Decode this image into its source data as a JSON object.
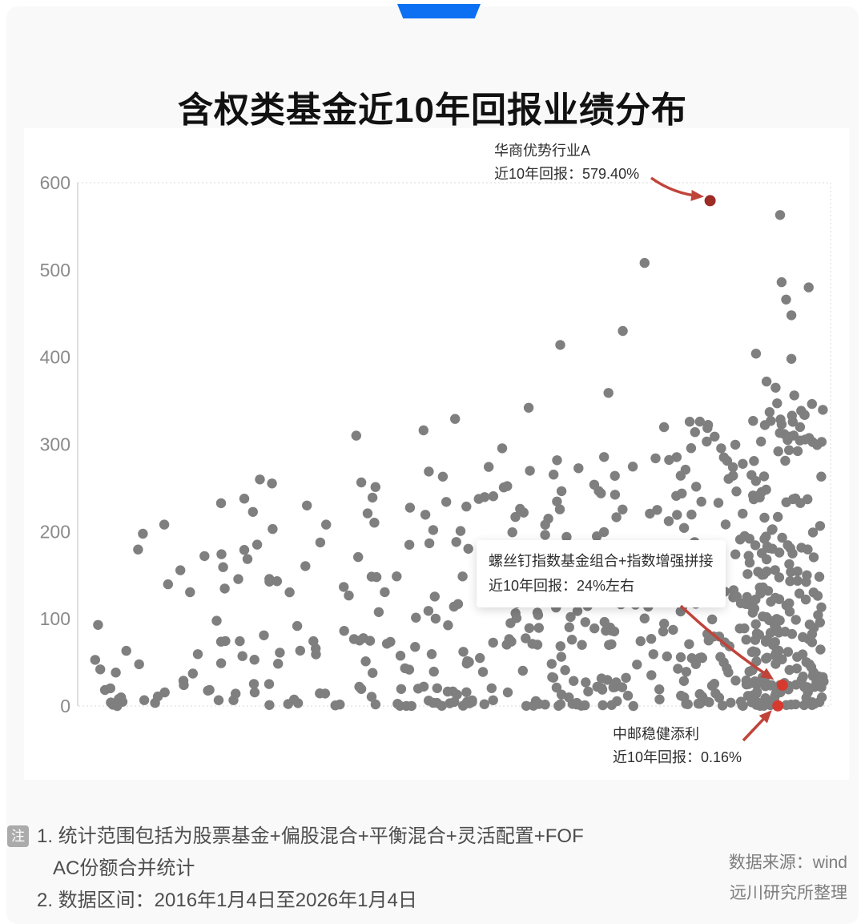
{
  "header": {
    "title": "含权类基金近10年回报业绩分布"
  },
  "ribbon_color": "#0d70f2",
  "chart_data": {
    "type": "scatter",
    "title": "含权类基金近10年回报业绩分布",
    "x_axis": {
      "label": "",
      "range": [
        0,
        100
      ],
      "ticks_visible": false
    },
    "y_axis": {
      "label": "",
      "unit": "%",
      "range": [
        0,
        600
      ],
      "ticks": [
        0,
        100,
        200,
        300,
        400,
        500,
        600
      ]
    },
    "grid": "off",
    "legend": "none",
    "point_color": "#7f7f7f",
    "point_radius": 6.2,
    "arrow_color": "#c0443a",
    "seed": 20,
    "clusters": [
      {
        "n": 26,
        "x": [
          2,
          18
        ],
        "y": [
          0,
          215
        ],
        "pow": 2.1
      },
      {
        "n": 72,
        "x": [
          18,
          42
        ],
        "y": [
          0,
          265
        ],
        "pow": 2.0
      },
      {
        "n": 92,
        "x": [
          42,
          62
        ],
        "y": [
          0,
          278
        ],
        "pow": 1.9
      },
      {
        "n": 104,
        "x": [
          62,
          80
        ],
        "y": [
          0,
          288
        ],
        "pow": 1.8
      },
      {
        "n": 150,
        "x": [
          80,
          94
        ],
        "y": [
          0,
          335
        ],
        "pow": 1.65
      },
      {
        "n": 165,
        "x": [
          89.5,
          99.2
        ],
        "y": [
          0,
          358
        ],
        "pow": 1.5
      },
      {
        "n": 14,
        "x": [
          30,
          80
        ],
        "y": [
          228,
          332
        ],
        "pow": 1.0
      }
    ],
    "extra_points": [
      [
        37.0,
        310
      ],
      [
        48.5,
        263
      ],
      [
        64.1,
        414
      ],
      [
        72.4,
        430
      ],
      [
        75.3,
        508
      ],
      [
        59.9,
        342
      ],
      [
        70.5,
        359
      ],
      [
        93.3,
        563
      ],
      [
        93.5,
        486
      ],
      [
        97.1,
        480
      ],
      [
        94.1,
        466
      ],
      [
        94.8,
        448
      ],
      [
        90.1,
        404
      ],
      [
        94.8,
        398
      ],
      [
        91.5,
        372
      ],
      [
        92.7,
        365
      ],
      [
        92.9,
        347
      ],
      [
        91.9,
        337
      ],
      [
        96.5,
        334
      ],
      [
        93.5,
        323
      ],
      [
        2.7,
        93
      ],
      [
        3.0,
        42
      ],
      [
        4.4,
        4
      ],
      [
        19.1,
        174
      ],
      [
        11.5,
        208
      ],
      [
        14.1,
        24
      ],
      [
        33.0,
        208
      ]
    ],
    "annotations": [
      {
        "fund": "华商优势行业A",
        "return_label": "近10年回报：579.40%",
        "x": 84.0,
        "y": 579.4,
        "dot_color": "#9d2c26",
        "boxed": false,
        "arrow": {
          "from": [
            783,
            62
          ],
          "to": [
            845,
            85
          ],
          "bend": 9
        }
      },
      {
        "fund": "螺丝钉指数基金组合+指数增强拼接",
        "return_label": "近10年回报：24%左右",
        "x": 93.6,
        "y": 24,
        "dot_color": "#d63a2f",
        "boxed": true,
        "arrow": {
          "from": [
            820,
            596
          ],
          "to": [
            933,
            686
          ],
          "bend": 6
        }
      },
      {
        "fund": "中邮稳健添利",
        "return_label": "近10年回报：0.16%",
        "x": 93.0,
        "y": 0.16,
        "dot_color": "#d63a2f",
        "boxed": false,
        "arrow": {
          "from": [
            898,
            764
          ],
          "to": [
            931,
            729
          ],
          "bend": 0
        }
      }
    ]
  },
  "notes": {
    "badge": "注",
    "lines": [
      "1. 统计范围包括为股票基金+偏股混合+平衡混合+灵活配置+FOF",
      "AC份额合并统计",
      "2. 数据区间：2016年1月4日至2026年1月4日"
    ],
    "source_lines": [
      "数据来源：wind",
      "远川研究所整理"
    ]
  }
}
